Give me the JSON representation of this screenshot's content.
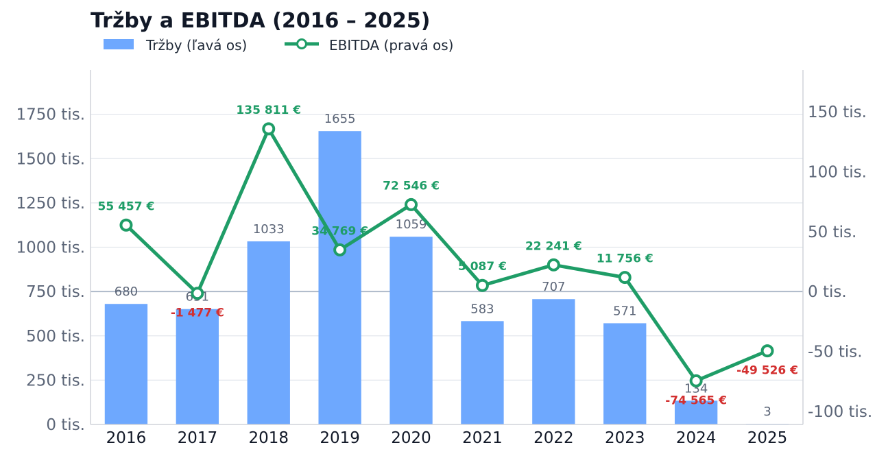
{
  "chart_data": {
    "type": "bar+line",
    "title": "Tržby a EBITDA (2016 – 2025)",
    "categories": [
      "2016",
      "2017",
      "2018",
      "2019",
      "2020",
      "2021",
      "2022",
      "2023",
      "2024",
      "2025"
    ],
    "series": [
      {
        "name": "Tržby (ľavá os)",
        "type": "bar",
        "axis": "left",
        "values": [
          680000,
          651000,
          1033000,
          1655000,
          1059000,
          583000,
          707000,
          571000,
          134000,
          3000
        ],
        "value_labels": [
          "680",
          "651",
          "1033",
          "1655",
          "1059",
          "583",
          "707",
          "571",
          "134",
          "3"
        ],
        "color": "#6ea8fe"
      },
      {
        "name": "EBITDA (pravá os)",
        "type": "line",
        "axis": "right",
        "values": [
          55457,
          -1477,
          135811,
          34769,
          72546,
          5087,
          22241,
          11756,
          -74565,
          -49526
        ],
        "value_labels": [
          "55 457 €",
          "-1 477 €",
          "135 811 €",
          "34 769 €",
          "72 546 €",
          "5 087 €",
          "22 241 €",
          "11 756 €",
          "-74 565 €",
          "-49 526 €"
        ],
        "color": "#1f9d67",
        "negative_color": "#d32f2f"
      }
    ],
    "y_left": {
      "lim": [
        0,
        2000000
      ],
      "ticks": [
        0,
        250000,
        500000,
        750000,
        1000000,
        1250000,
        1500000,
        1750000
      ],
      "tick_labels": [
        "0 tis.",
        "250 tis.",
        "500 tis.",
        "750 tis.",
        "1000 tis.",
        "1250 tis.",
        "1500 tis.",
        "1750 tis."
      ]
    },
    "y_right": {
      "lim": [
        -111000,
        185000
      ],
      "ticks": [
        -100000,
        -50000,
        0,
        50000,
        100000,
        150000
      ],
      "tick_labels": [
        "-100 tis.",
        "-50 tis.",
        "0 tis.",
        "50 tis.",
        "100 tis.",
        "150 tis."
      ]
    },
    "grid": true,
    "legend_position": "top-left"
  }
}
